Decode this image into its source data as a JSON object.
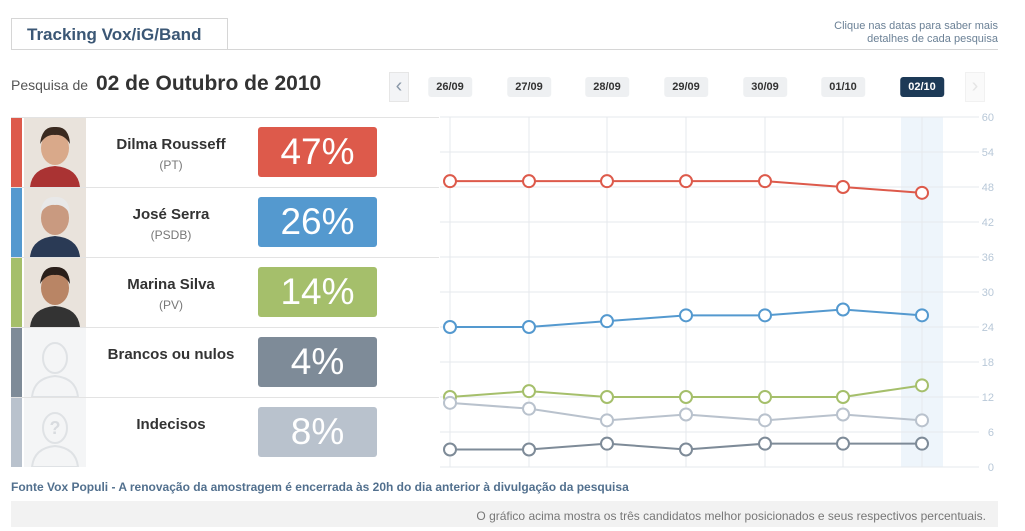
{
  "header": {
    "tab_label": "Tracking Vox/iG/Band",
    "hint_line1": "Clique nas datas para saber mais",
    "hint_line2": "detalhes de cada pesquisa",
    "survey_label": "Pesquisa de",
    "survey_date": "02 de Outubro de 2010",
    "prev_arrow": "‹",
    "next_arrow": "›"
  },
  "dates": [
    "26/09",
    "27/09",
    "28/09",
    "29/09",
    "30/09",
    "01/10",
    "02/10"
  ],
  "selected_date": "02/10",
  "candidates": [
    {
      "name": "Dilma Rousseff",
      "party": "(PT)",
      "percent": "47%",
      "color": "#dd5a4b"
    },
    {
      "name": "José Serra",
      "party": "(PSDB)",
      "percent": "26%",
      "color": "#5499cf"
    },
    {
      "name": "Marina Silva",
      "party": "(PV)",
      "percent": "14%",
      "color": "#a5bf6b"
    },
    {
      "name": "Brancos ou nulos",
      "party": "",
      "percent": "4%",
      "color": "#7e8b98"
    },
    {
      "name": "Indecisos",
      "party": "",
      "percent": "8%",
      "color": "#b9c2cd"
    }
  ],
  "chart_data": {
    "type": "line",
    "x": [
      "26/09",
      "27/09",
      "28/09",
      "29/09",
      "30/09",
      "01/10",
      "02/10"
    ],
    "ylim": [
      0,
      60
    ],
    "yticks": [
      0,
      6,
      12,
      18,
      24,
      30,
      36,
      42,
      48,
      54,
      60
    ],
    "grid": true,
    "series": [
      {
        "name": "Dilma Rousseff",
        "color": "#dd5a4b",
        "values": [
          49,
          49,
          49,
          49,
          49,
          48,
          47
        ]
      },
      {
        "name": "José Serra",
        "color": "#5499cf",
        "values": [
          24,
          24,
          25,
          26,
          26,
          27,
          26
        ]
      },
      {
        "name": "Marina Silva",
        "color": "#a5bf6b",
        "values": [
          12,
          13,
          12,
          12,
          12,
          12,
          14
        ]
      },
      {
        "name": "Indecisos",
        "color": "#b9c2cd",
        "values": [
          11,
          10,
          8,
          9,
          8,
          9,
          8
        ]
      },
      {
        "name": "Brancos ou nulos",
        "color": "#7e8b98",
        "values": [
          3,
          3,
          4,
          3,
          4,
          4,
          4
        ]
      }
    ]
  },
  "source_text": "Fonte Vox Populi - A renovação da amostragem é encerrada às 20h do dia anterior à divulgação da pesquisa",
  "footer_text": "O gráfico acima mostra os três candidatos melhor posicionados e seus respectivos percentuais."
}
